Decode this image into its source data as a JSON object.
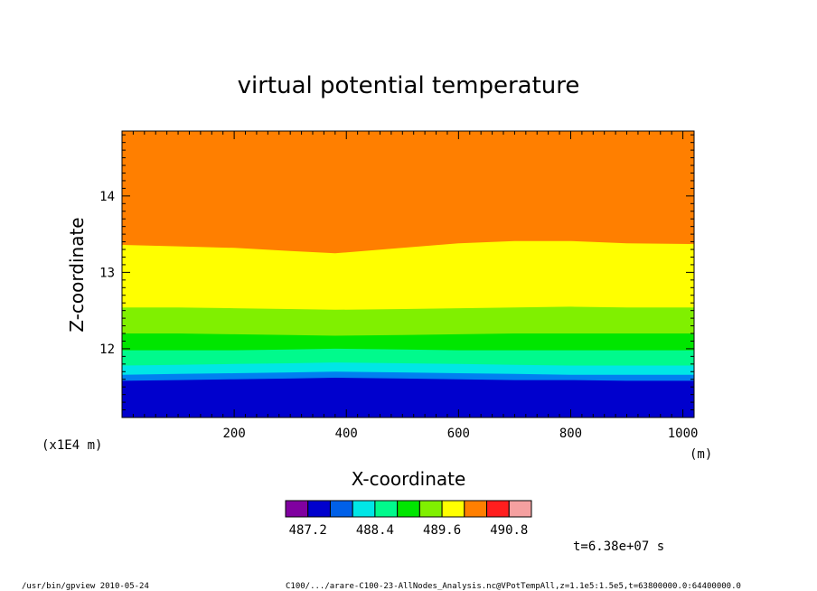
{
  "chart_data": {
    "type": "heatmap",
    "title": "virtual potential temperature",
    "xlabel": "X-coordinate",
    "ylabel": "Z-coordinate",
    "x_unit": "(m)",
    "y_unit": "(x1E4 m)",
    "xlim": [
      0,
      1020
    ],
    "ylim": [
      11.1,
      14.85
    ],
    "x_ticks": [
      200,
      400,
      600,
      800,
      1000
    ],
    "y_ticks": [
      12,
      13,
      14
    ],
    "bands": [
      {
        "color": "#0000CD",
        "z_top": [
          11.58,
          11.59,
          11.6,
          11.61,
          11.62,
          11.61,
          11.6,
          11.59,
          11.59,
          11.58,
          11.58
        ]
      },
      {
        "color": "#0080F0",
        "z_top": [
          11.66,
          11.67,
          11.68,
          11.69,
          11.7,
          11.69,
          11.68,
          11.67,
          11.66,
          11.66,
          11.66
        ]
      },
      {
        "color": "#00E6E6",
        "z_top": [
          11.78,
          11.79,
          11.8,
          11.81,
          11.82,
          11.81,
          11.8,
          11.79,
          11.78,
          11.78,
          11.78
        ]
      },
      {
        "color": "#00FA8C",
        "z_top": [
          11.98,
          11.98,
          11.98,
          11.99,
          12.0,
          11.99,
          11.98,
          11.98,
          11.98,
          11.98,
          11.98
        ]
      },
      {
        "color": "#00E600",
        "z_top": [
          12.2,
          12.2,
          12.19,
          12.18,
          12.17,
          12.18,
          12.19,
          12.2,
          12.2,
          12.2,
          12.2
        ]
      },
      {
        "color": "#80F000",
        "z_top": [
          12.54,
          12.54,
          12.53,
          12.52,
          12.51,
          12.52,
          12.53,
          12.54,
          12.55,
          12.54,
          12.54
        ]
      },
      {
        "color": "#FFFF00",
        "z_top": [
          13.36,
          13.34,
          13.32,
          13.28,
          13.25,
          13.32,
          13.38,
          13.41,
          13.41,
          13.38,
          13.37
        ]
      },
      {
        "color": "#FF7F00",
        "z_top": [
          14.85,
          14.85,
          14.85,
          14.85,
          14.85,
          14.85,
          14.85,
          14.85,
          14.85,
          14.85,
          14.85
        ]
      }
    ],
    "band_x": [
      0,
      100,
      200,
      300,
      380,
      500,
      600,
      700,
      800,
      900,
      1020
    ],
    "colorbar": {
      "colors": [
        "#8000A0",
        "#0000CD",
        "#0060E8",
        "#00E6E6",
        "#00FA8C",
        "#00E600",
        "#80F000",
        "#FFFF00",
        "#FF7F00",
        "#FF1E1E",
        "#F5A0A0"
      ],
      "labels": [
        "487.2",
        "488.4",
        "489.6",
        "490.8"
      ]
    },
    "time_label": "t=6.38e+07 s"
  },
  "footer": {
    "left": "/usr/bin/gpview   2010-05-24",
    "right": "C100/.../arare-C100-23-AllNodes_Analysis.nc@VPotTempAll,z=1.1e5:1.5e5,t=63800000.0:64400000.0"
  }
}
